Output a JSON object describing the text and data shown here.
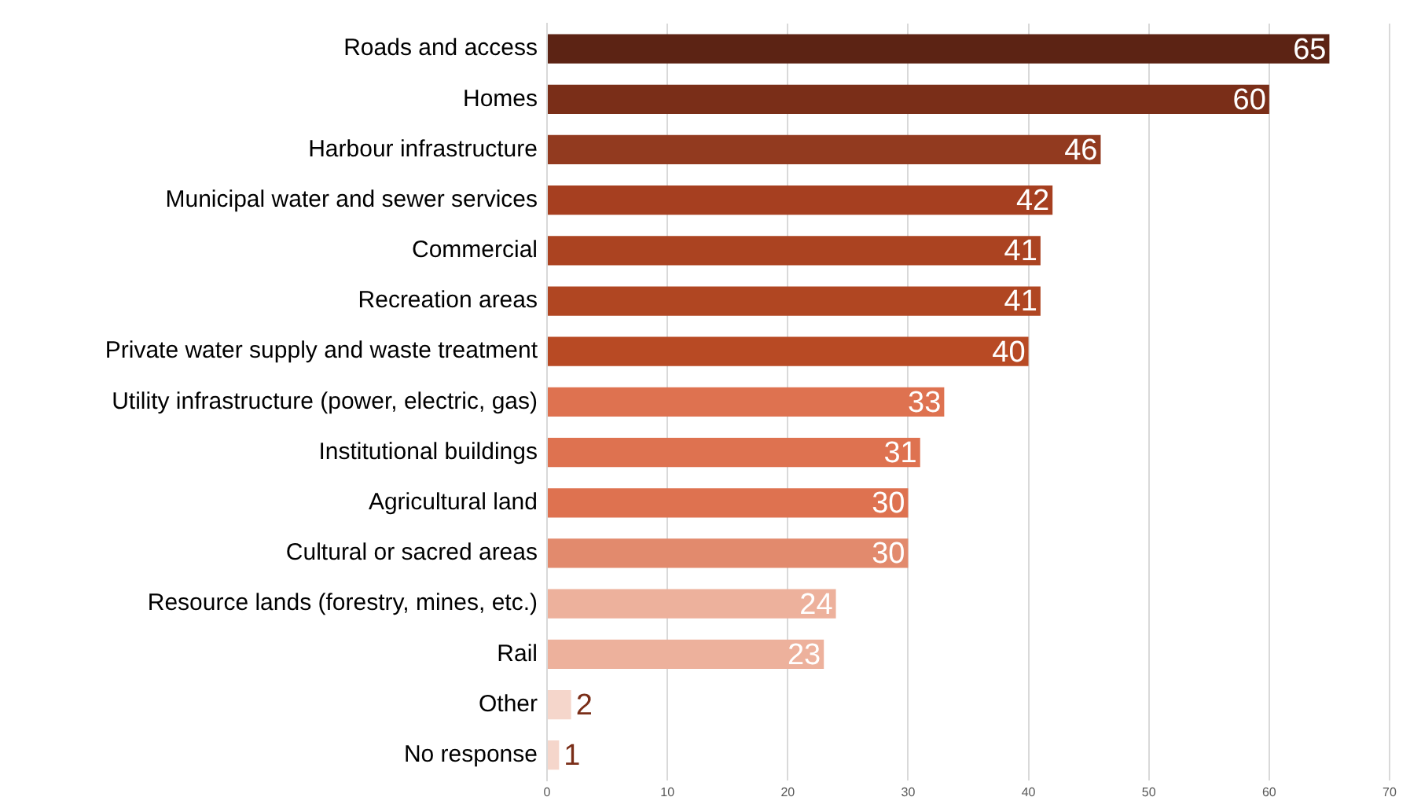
{
  "chart_data": {
    "type": "bar",
    "orientation": "horizontal",
    "categories": [
      "Roads and access",
      "Homes",
      "Harbour infrastructure",
      "Municipal water and sewer services",
      "Commercial",
      "Recreation areas",
      "Private water supply and waste treatment",
      "Utility infrastructure (power, electric, gas)",
      "Institutional buildings",
      "Agricultural land",
      "Cultural or sacred areas",
      "Resource lands (forestry, mines, etc.)",
      "Rail",
      "Other",
      "No response"
    ],
    "values": [
      65,
      60,
      46,
      42,
      41,
      41,
      40,
      33,
      31,
      30,
      30,
      24,
      23,
      2,
      1
    ],
    "colors": [
      "#5c2314",
      "#7a2e18",
      "#923a1f",
      "#a63f20",
      "#ab4321",
      "#b04622",
      "#b84a24",
      "#de7250",
      "#de7250",
      "#de7250",
      "#e28a6d",
      "#edb19c",
      "#edb19c",
      "#f5d6cb",
      "#f5d6cb"
    ],
    "xlim": [
      0,
      70
    ],
    "xticks": [
      0,
      10,
      20,
      30,
      40,
      50,
      60,
      70
    ],
    "grid": "x",
    "data_labels": true,
    "legend": false
  }
}
